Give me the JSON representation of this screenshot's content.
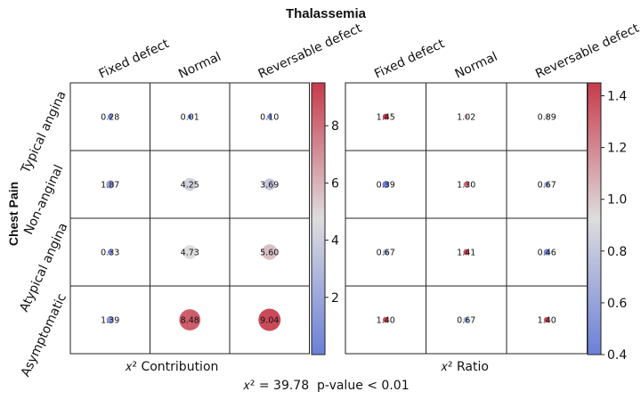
{
  "title": "Thalassemia",
  "ylabel": "Chest Pain",
  "footer_left": "𝑥² = 39.78",
  "footer_right": "p-value < 0.01",
  "columns": [
    "Fixed defect",
    "Normal",
    "Reversable defect"
  ],
  "rows": [
    "Typical angina",
    "Non-anginal",
    "Atypical angina",
    "Asymptomatic"
  ],
  "chart_data": [
    {
      "type": "heatmap",
      "title": "𝑥² Contribution",
      "xlabel": "Thalassemia",
      "ylabel": "Chest Pain",
      "categories_x": [
        "Fixed defect",
        "Normal",
        "Reversable defect"
      ],
      "categories_y": [
        "Typical angina",
        "Non-anginal",
        "Atypical angina",
        "Asymptomatic"
      ],
      "values": [
        [
          0.28,
          0.01,
          0.1
        ],
        [
          1.87,
          4.25,
          3.69
        ],
        [
          0.33,
          4.73,
          5.6
        ],
        [
          1.39,
          8.48,
          9.04
        ]
      ],
      "labels": [
        [
          "0.28",
          "0.01",
          "0.10"
        ],
        [
          "1.87",
          "4.25",
          "3.69"
        ],
        [
          "0.33",
          "4.73",
          "5.60"
        ],
        [
          "1.39",
          "8.48",
          "9.04"
        ]
      ],
      "colorbar": {
        "min": 0,
        "max": 9.5,
        "ticks": [
          2,
          4,
          6,
          8
        ],
        "tick_labels": [
          "2",
          "4",
          "6",
          "8"
        ]
      }
    },
    {
      "type": "heatmap",
      "title": "𝑥² Ratio",
      "xlabel": "Thalassemia",
      "ylabel": "Chest Pain",
      "categories_x": [
        "Fixed defect",
        "Normal",
        "Reversable defect"
      ],
      "categories_y": [
        "Typical angina",
        "Non-anginal",
        "Atypical angina",
        "Asymptomatic"
      ],
      "values": [
        [
          1.45,
          1.02,
          0.89
        ],
        [
          0.39,
          1.3,
          0.67
        ],
        [
          0.67,
          1.41,
          0.46
        ],
        [
          1.4,
          0.67,
          1.4
        ]
      ],
      "labels": [
        [
          "1.45",
          "1.02",
          "0.89"
        ],
        [
          "0.39",
          "1.30",
          "0.67"
        ],
        [
          "0.67",
          "1.41",
          "0.46"
        ],
        [
          "1.40",
          "0.67",
          "1.40"
        ]
      ],
      "colorbar": {
        "min": 0.4,
        "max": 1.45,
        "ticks": [
          0.4,
          0.6,
          0.8,
          1.0,
          1.2,
          1.4
        ],
        "tick_labels": [
          "0.4",
          "0.6",
          "0.8",
          "1.0",
          "1.2",
          "1.4"
        ]
      }
    }
  ],
  "colors": {
    "low": "#6b7fd7",
    "mid": "#dddddd",
    "high": "#c83a4c",
    "grid": "#222222"
  }
}
